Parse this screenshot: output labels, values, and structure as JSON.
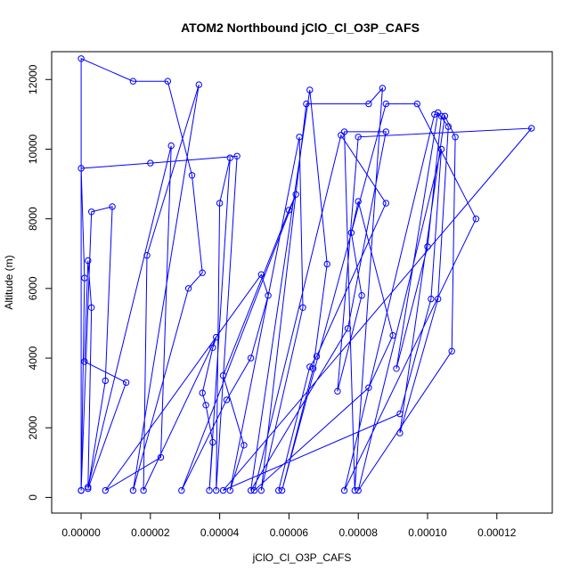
{
  "chart_data": {
    "type": "scatter",
    "title": "ATOM2 Northbound jClO_Cl_O3P_CAFS",
    "xlabel": "jClO_Cl_O3P_CAFS",
    "ylabel": "Altitude (m)",
    "xlim": [
      -8.5e-06,
      0.000136
    ],
    "ylim": [
      -450,
      12800
    ],
    "xticks": [
      0.0,
      2e-05,
      4e-05,
      6e-05,
      8e-05,
      0.0001,
      0.00012
    ],
    "xtick_labels": [
      "0.00000",
      "0.00002",
      "0.00004",
      "0.00006",
      "0.00008",
      "0.00010",
      "0.00012"
    ],
    "yticks": [
      0,
      2000,
      4000,
      6000,
      8000,
      10000,
      12000
    ],
    "ytick_labels": [
      "0",
      "2000",
      "4000",
      "6000",
      "8000",
      "10000",
      "12000"
    ],
    "series_color": "#0000ff",
    "series": [
      {
        "points": [
          [
            0.0,
            200
          ],
          [
            0.0,
            12600
          ],
          [
            1.5e-05,
            11950
          ],
          [
            2.5e-05,
            11950
          ],
          [
            3.2e-05,
            9250
          ],
          [
            3.5e-05,
            6450
          ],
          [
            3.1e-05,
            6000
          ],
          [
            1.5e-05,
            200
          ],
          [
            3.4e-05,
            11850
          ],
          [
            1.9e-05,
            6950
          ],
          [
            1.8e-05,
            200
          ],
          [
            3.9e-05,
            4600
          ],
          [
            3.8e-05,
            4300
          ],
          [
            3.5e-05,
            3000
          ],
          [
            3.6e-05,
            2650
          ],
          [
            3.8e-05,
            1580
          ],
          [
            3.7e-05,
            200
          ],
          [
            4.3e-05,
            9750
          ],
          [
            4e-05,
            8450
          ],
          [
            3.9e-05,
            200
          ],
          [
            4.5e-05,
            9800
          ],
          [
            2e-05,
            9600
          ],
          [
            0.0,
            9450
          ],
          [
            1e-06,
            6300
          ],
          [
            0.0,
            200
          ],
          [
            3e-06,
            8200
          ],
          [
            9e-06,
            8350
          ],
          [
            7e-06,
            3350
          ],
          [
            2e-06,
            250
          ],
          [
            1.3e-05,
            3300
          ],
          [
            1e-06,
            3900
          ],
          [
            2e-06,
            6800
          ],
          [
            3e-06,
            5450
          ],
          [
            2e-06,
            300
          ],
          [
            2.6e-05,
            10100
          ],
          [
            2.3e-05,
            1150
          ],
          [
            7e-06,
            200
          ],
          [
            5.2e-05,
            6400
          ],
          [
            5.4e-05,
            5800
          ],
          [
            4.9e-05,
            4000
          ],
          [
            4.2e-05,
            2800
          ],
          [
            2.9e-05,
            200
          ],
          [
            6.2e-05,
            8700
          ],
          [
            6e-05,
            8250
          ],
          [
            4.1e-05,
            3500
          ],
          [
            4.7e-05,
            1500
          ],
          [
            4.3e-05,
            200
          ],
          [
            6.3e-05,
            10350
          ],
          [
            6.4e-05,
            5450
          ],
          [
            5.2e-05,
            200
          ],
          [
            6.5e-05,
            11300
          ],
          [
            8.3e-05,
            11300
          ],
          [
            8.7e-05,
            11750
          ],
          [
            7.9e-05,
            200
          ],
          [
            7.6e-05,
            10500
          ],
          [
            8.8e-05,
            10500
          ],
          [
            7.7e-05,
            4850
          ],
          [
            4.9e-05,
            200
          ],
          [
            6.6e-05,
            11700
          ],
          [
            7.1e-05,
            6700
          ],
          [
            6.7e-05,
            3700
          ],
          [
            5.8e-05,
            200
          ],
          [
            8.8e-05,
            11300
          ],
          [
            9.7e-05,
            11300
          ],
          [
            0.000114,
            8000
          ],
          [
            7.6e-05,
            200
          ],
          [
            0.000102,
            11000
          ],
          [
            0.000104,
            10950
          ],
          [
            0.0001,
            7200
          ],
          [
            9.1e-05,
            3700
          ],
          [
            0.000103,
            11050
          ],
          [
            0.000106,
            10650
          ],
          [
            0.000103,
            5700
          ],
          [
            9.2e-05,
            1850
          ],
          [
            0.000105,
            10950
          ],
          [
            0.000108,
            10350
          ],
          [
            0.000107,
            4200
          ],
          [
            8e-05,
            200
          ],
          [
            0.000104,
            10000
          ],
          [
            0.000101,
            5700
          ],
          [
            9.2e-05,
            2400
          ],
          [
            4.1e-05,
            200
          ],
          [
            0.00013,
            10600
          ],
          [
            8e-05,
            10350
          ],
          [
            7.4e-05,
            3050
          ],
          [
            8.1e-05,
            5800
          ],
          [
            7.8e-05,
            7600
          ],
          [
            8e-05,
            8500
          ],
          [
            9e-05,
            4650
          ],
          [
            8.3e-05,
            3150
          ],
          [
            5e-05,
            200
          ],
          [
            7.5e-05,
            10400
          ],
          [
            8.8e-05,
            8450
          ],
          [
            6.8e-05,
            4050
          ],
          [
            6.6e-05,
            3750
          ],
          [
            5.7e-05,
            200
          ]
        ]
      }
    ]
  }
}
